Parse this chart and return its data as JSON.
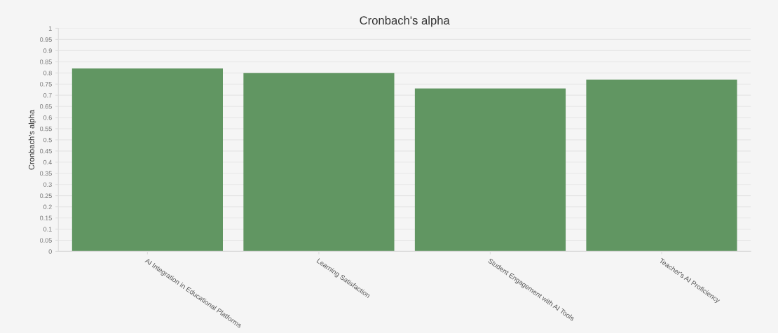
{
  "chart_data": {
    "type": "bar",
    "title": "Cronbach's alpha",
    "ylabel": "Cronbach's alpha",
    "categories": [
      "AI Integration in Educational Platforms",
      "Learning Satisfaction",
      "Student Engagement with AI Tools",
      "Teacher's AI Proficiency"
    ],
    "values": [
      0.82,
      0.8,
      0.73,
      0.77
    ],
    "color": "#619662",
    "ylim": [
      0,
      1
    ],
    "yticks": [
      0,
      0.05,
      0.1,
      0.15,
      0.2,
      0.25,
      0.3,
      0.35,
      0.4,
      0.45,
      0.5,
      0.55,
      0.6,
      0.65,
      0.7,
      0.75,
      0.8,
      0.85,
      0.9,
      0.95,
      1
    ],
    "grid": "y",
    "legend": false
  }
}
